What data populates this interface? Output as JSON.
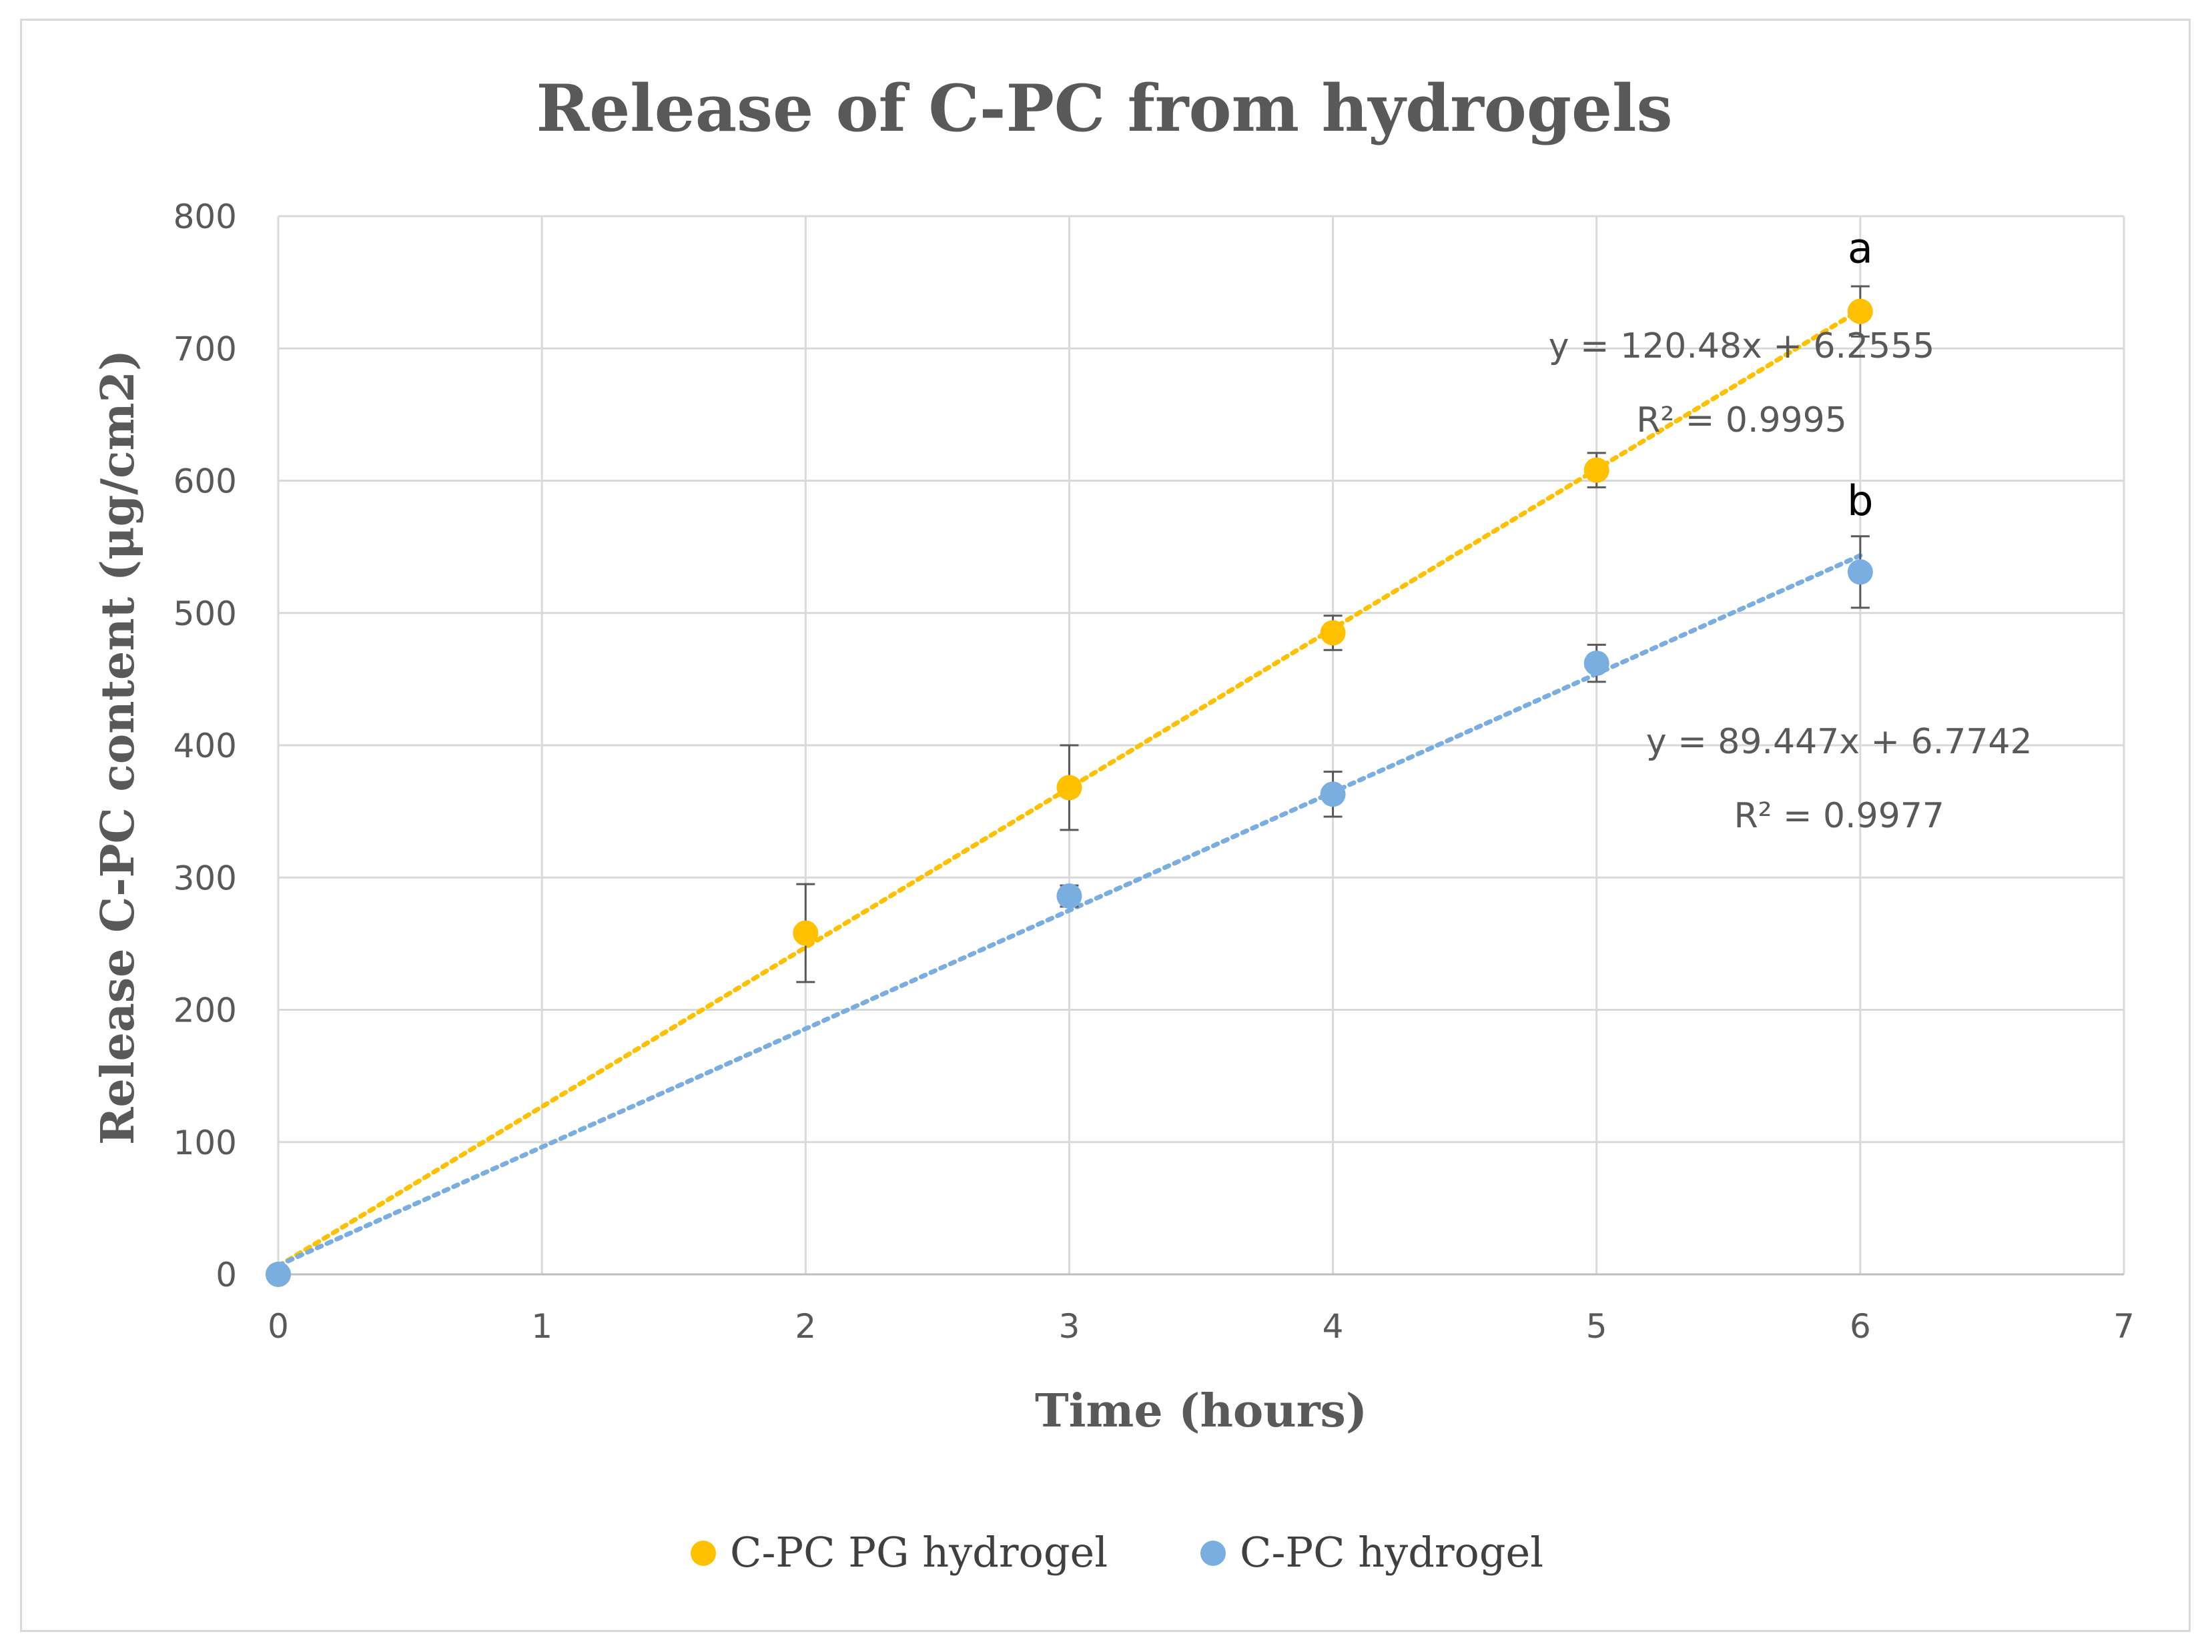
{
  "chart_data": {
    "type": "scatter",
    "title": "Release of C-PC from hydrogels",
    "xlabel": "Time (hours)",
    "ylabel": "Release C-PC content (μg/cm2)",
    "xlim": [
      0,
      7
    ],
    "ylim": [
      0,
      800
    ],
    "x_ticks": [
      "0",
      "1",
      "2",
      "3",
      "4",
      "5",
      "6",
      "7"
    ],
    "y_ticks": [
      "0",
      "100",
      "200",
      "300",
      "400",
      "500",
      "600",
      "700",
      "800"
    ],
    "grid": true,
    "legend_position": "bottom",
    "series": [
      {
        "name": "C-PC  PG hydrogel",
        "color": "#ffc000",
        "x": [
          0,
          2,
          3,
          4,
          5,
          6
        ],
        "y": [
          0,
          258,
          368,
          485,
          608,
          728
        ],
        "error": [
          0,
          37,
          32,
          13,
          13,
          19
        ],
        "trendline": {
          "slope": 120.48,
          "intercept": 6.2555,
          "equation": "y = 120.48x + 6.2555",
          "r2": "R² = 0.9995"
        },
        "significance_label": "a"
      },
      {
        "name": "C-PC hydrogel",
        "color": "#7aaee0",
        "x": [
          0,
          3,
          4,
          5,
          6
        ],
        "y": [
          0,
          286,
          363,
          462,
          531
        ],
        "error": [
          0,
          8,
          17,
          14,
          27
        ],
        "trendline": {
          "slope": 89.447,
          "intercept": 6.7742,
          "equation": "y = 89.447x + 6.7742",
          "r2": "R² = 0.9977"
        },
        "significance_label": "b"
      }
    ]
  }
}
